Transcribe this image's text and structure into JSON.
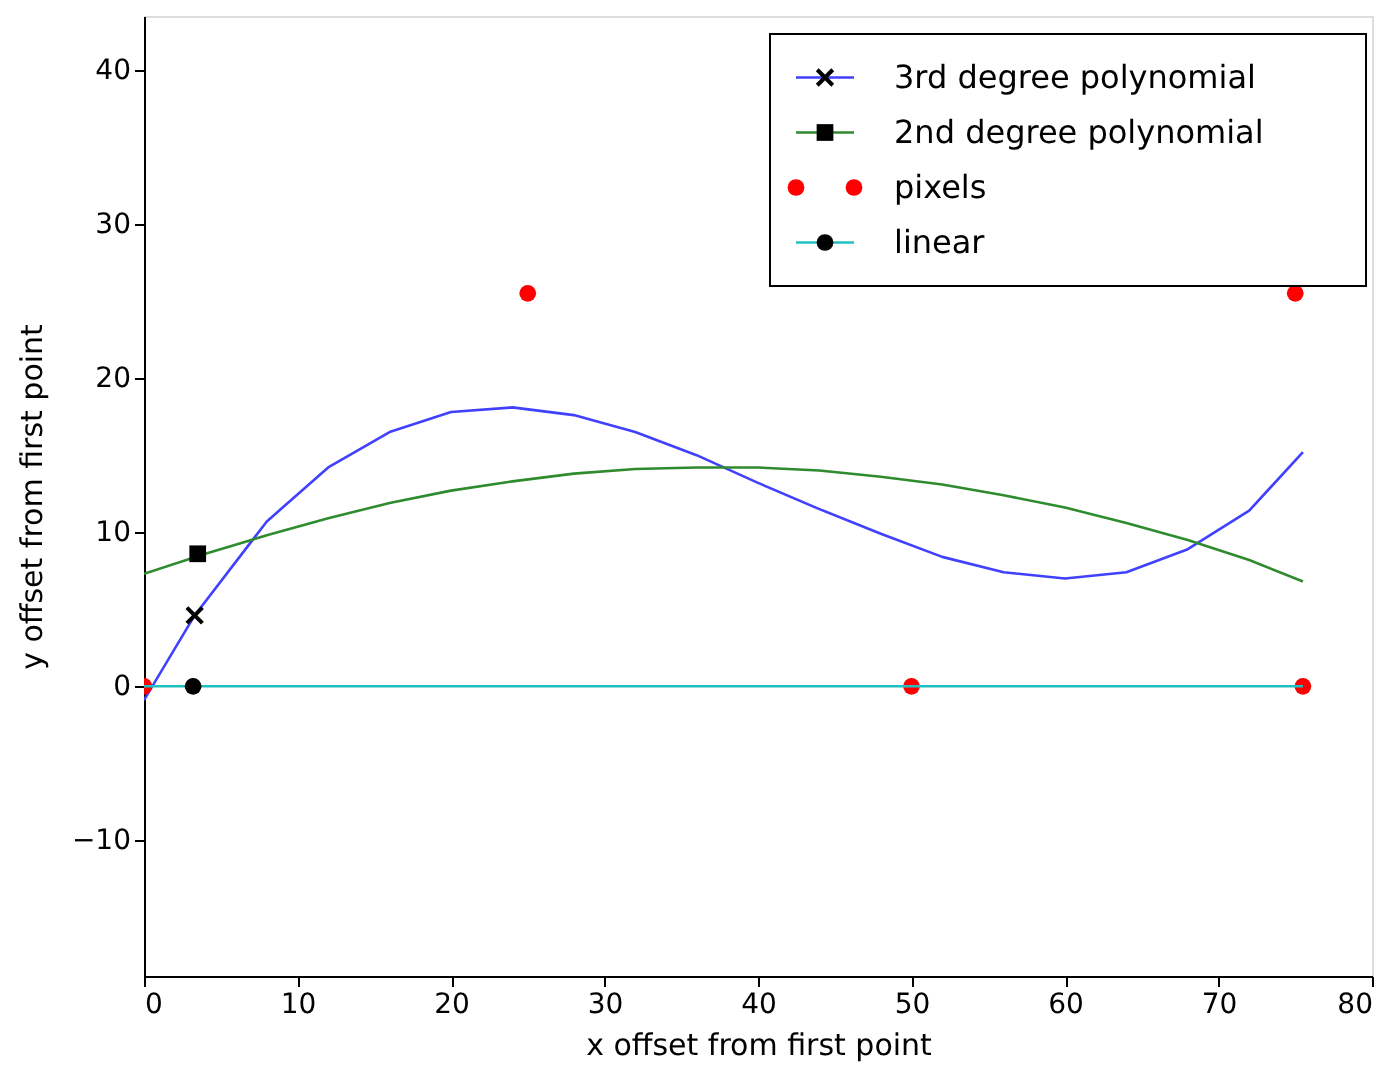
{
  "chart_data": {
    "type": "line",
    "xlabel": "x offset from first point",
    "ylabel": "y offset from first point",
    "xlim": [
      0,
      80
    ],
    "xticks": [
      0,
      10,
      20,
      30,
      40,
      50,
      60,
      70,
      80
    ],
    "ylim": [
      -18.8,
      43.5
    ],
    "yticks": [
      -10,
      0,
      10,
      20,
      30,
      40
    ],
    "grid": false,
    "legend": "top right",
    "series": [
      {
        "name": "3rd degree polynomial",
        "color": "#4040ff",
        "x": [
          0,
          3.3,
          8,
          12,
          16,
          20,
          24,
          28,
          32,
          36,
          40,
          44,
          48,
          52,
          56,
          60,
          64,
          68,
          72,
          75.5
        ],
        "values": [
          -0.9,
          4.6,
          10.7,
          14.2,
          16.5,
          17.8,
          18.1,
          17.6,
          16.5,
          15.0,
          13.2,
          11.5,
          9.9,
          8.4,
          7.4,
          7.0,
          7.4,
          8.9,
          11.4,
          15.2
        ]
      },
      {
        "type": "scatter",
        "marker": "cross",
        "color": "#000000",
        "x": [
          3.3
        ],
        "values": [
          4.6
        ]
      },
      {
        "name": "2nd degree polynomial",
        "color": "#2e8b2e",
        "x": [
          0,
          4,
          8,
          12,
          16,
          20,
          24,
          28,
          32,
          36,
          40,
          44,
          48,
          52,
          56,
          60,
          64,
          68,
          72,
          75.5
        ],
        "values": [
          7.3,
          8.6,
          9.8,
          10.9,
          11.9,
          12.7,
          13.3,
          13.8,
          14.1,
          14.2,
          14.2,
          14.0,
          13.6,
          13.1,
          12.4,
          11.6,
          10.6,
          9.5,
          8.2,
          6.8
        ]
      },
      {
        "type": "scatter",
        "marker": "square",
        "color": "#000000",
        "x": [
          3.5
        ],
        "values": [
          8.6
        ]
      },
      {
        "name": "pixels",
        "type": "scatter",
        "marker": "circle",
        "color": "#ff0000",
        "x": [
          0,
          25,
          50,
          75,
          75.5
        ],
        "values": [
          0,
          25.5,
          0,
          25.5,
          0
        ]
      },
      {
        "name": "linear",
        "color": "#20c0c0",
        "x": [
          0,
          75.5
        ],
        "values": [
          0,
          0
        ]
      },
      {
        "type": "scatter",
        "marker": "circle",
        "color": "#000000",
        "x": [
          3.2
        ],
        "values": [
          0
        ]
      }
    ]
  }
}
